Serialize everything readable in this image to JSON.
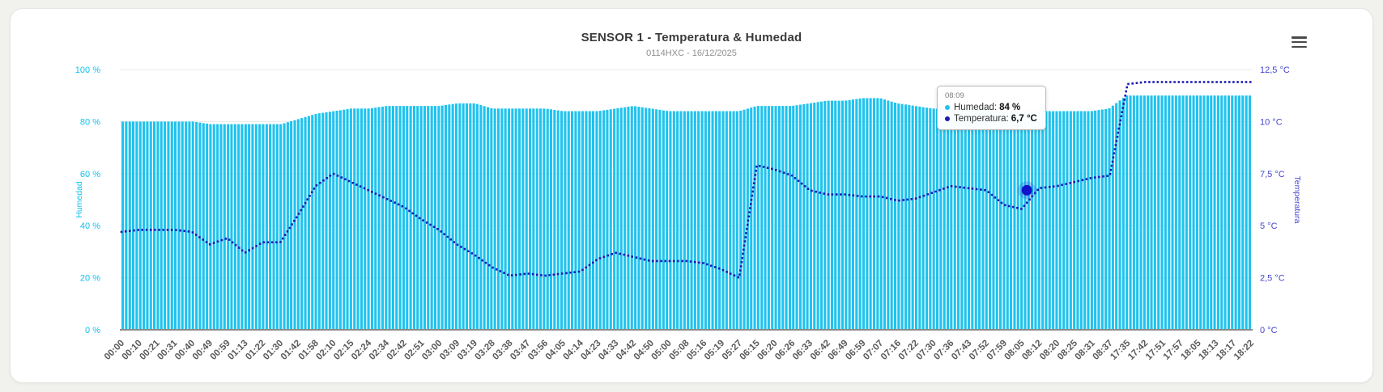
{
  "page": {
    "background": "#f1f1ee",
    "card_background": "#ffffff"
  },
  "menu": {
    "icon": "hamburger-menu-icon"
  },
  "tooltip": {
    "time": "08:09",
    "rows": [
      {
        "label": "Humedad:",
        "value": "84 %",
        "color": "#1fc3ee"
      },
      {
        "label": "Temperatura:",
        "value": "6,7 °C",
        "color": "#1b1bb3"
      }
    ]
  },
  "chart_data": {
    "type": "bar",
    "title": "SENSOR 1 - Temperatura & Humedad",
    "subtitle": "0114HXC - 16/12/2025",
    "legend": "none",
    "grid": "horizontal",
    "categories": [
      "00:00",
      "00:10",
      "00:21",
      "00:31",
      "00:40",
      "00:49",
      "00:59",
      "01:13",
      "01:22",
      "01:30",
      "01:42",
      "01:58",
      "02:10",
      "02:15",
      "02:24",
      "02:34",
      "02:42",
      "02:51",
      "03:00",
      "03:09",
      "03:19",
      "03:28",
      "03:38",
      "03:47",
      "03:56",
      "04:05",
      "04:14",
      "04:23",
      "04:33",
      "04:42",
      "04:50",
      "05:00",
      "05:08",
      "05:16",
      "05:19",
      "05:27",
      "06:15",
      "06:20",
      "06:26",
      "06:33",
      "06:42",
      "06:49",
      "06:59",
      "07:07",
      "07:16",
      "07:22",
      "07:30",
      "07:36",
      "07:43",
      "07:52",
      "07:59",
      "08:05",
      "08:12",
      "08:20",
      "08:25",
      "08:31",
      "08:37",
      "17:35",
      "17:42",
      "17:51",
      "17:57",
      "18:05",
      "18:13",
      "18:17",
      "18:22"
    ],
    "series": [
      {
        "name": "Humedad",
        "type": "bar",
        "unit": "%",
        "color": "#1fc3ee",
        "values": [
          80,
          80,
          80,
          80,
          80,
          79,
          79,
          79,
          79,
          79,
          81,
          83,
          84,
          85,
          85,
          86,
          86,
          86,
          86,
          87,
          87,
          85,
          85,
          85,
          85,
          84,
          84,
          84,
          85,
          86,
          85,
          84,
          84,
          84,
          84,
          84,
          86,
          86,
          86,
          87,
          88,
          88,
          89,
          89,
          87,
          86,
          85,
          85,
          85,
          85,
          84,
          84,
          84,
          84,
          84,
          84,
          85,
          90,
          90,
          90,
          90,
          90,
          90,
          90,
          90
        ]
      },
      {
        "name": "Temperatura",
        "type": "line",
        "line_style": "dotted",
        "unit": "°C",
        "color": "#1b1bb3",
        "values": [
          4.7,
          4.8,
          4.8,
          4.8,
          4.7,
          4.1,
          4.4,
          3.7,
          4.2,
          4.2,
          5.5,
          6.9,
          7.5,
          7.1,
          6.7,
          6.3,
          5.9,
          5.3,
          4.8,
          4.1,
          3.6,
          3.0,
          2.6,
          2.7,
          2.6,
          2.7,
          2.8,
          3.4,
          3.7,
          3.5,
          3.3,
          3.3,
          3.3,
          3.2,
          2.9,
          2.5,
          7.9,
          7.7,
          7.4,
          6.7,
          6.5,
          6.5,
          6.4,
          6.4,
          6.2,
          6.3,
          6.6,
          6.9,
          6.8,
          6.7,
          6.0,
          5.8,
          6.8,
          6.9,
          7.1,
          7.3,
          7.4,
          11.8,
          11.9,
          11.9,
          11.9,
          11.9,
          11.9,
          11.9,
          11.9
        ]
      }
    ],
    "axes": {
      "left": {
        "title": "Humedad",
        "unit": "%",
        "min": 0,
        "max": 100,
        "ticks": [
          "100 %",
          "80 %",
          "60 %",
          "40 %",
          "20 %",
          "0 %"
        ],
        "tick_values": [
          100,
          80,
          60,
          40,
          20,
          0
        ],
        "color": "#0fc3ee"
      },
      "right": {
        "title": "Temperatura",
        "unit": "°C",
        "min": 0,
        "max": 12.5,
        "ticks": [
          "12,5 °C",
          "10 °C",
          "7,5 °C",
          "5 °C",
          "2,5 °C",
          "0 °C"
        ],
        "tick_values": [
          12.5,
          10,
          7.5,
          5,
          2.5,
          0
        ],
        "color": "#4545cf"
      }
    },
    "highlight": {
      "category": "08:09",
      "humedad": "84 %",
      "temperatura": "6,7 °C",
      "position_index": 51.3,
      "temp_value": 6.7
    },
    "x_label_color": "#5a5a5a"
  }
}
